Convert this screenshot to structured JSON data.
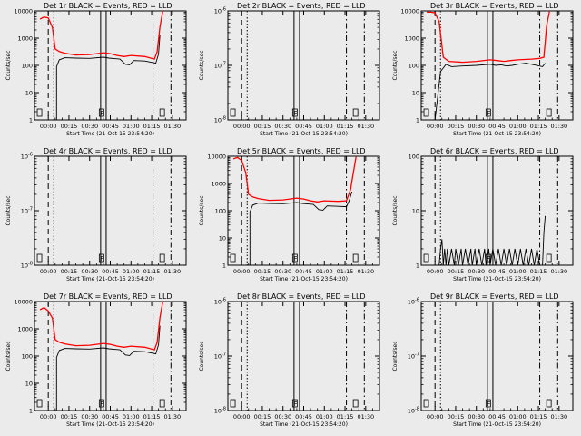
{
  "colors": {
    "events": "#000000",
    "lld": "#ff0000",
    "background": "#ebebeb"
  },
  "chart_data": [
    {
      "type": "line",
      "title": "Det 1r BLACK = Events, RED = LLD",
      "scale": "log",
      "ylim": [
        1,
        10000
      ],
      "yticks": [
        "1",
        "10",
        "100",
        "1000",
        "10000"
      ],
      "xlabel": "Start Time (21-Oct-15 23:54:20)",
      "ylabel": "Counts/sec",
      "xtick_labels": [
        "00:00",
        "00:15",
        "00:30",
        "00:45",
        "01:00",
        "01:15",
        "01:30"
      ],
      "flags": [
        "",
        "F",
        ""
      ],
      "series": [
        {
          "name": "Events",
          "x": [
            0,
            6,
            6,
            8,
            12,
            20,
            30,
            40,
            44,
            49,
            52,
            56,
            59,
            62,
            70,
            78,
            80,
            81
          ],
          "values": [
            0,
            0,
            90,
            160,
            190,
            185,
            180,
            200,
            185,
            175,
            170,
            110,
            105,
            150,
            145,
            120,
            260,
            1300
          ]
        },
        {
          "name": "LLD",
          "x": [
            -6,
            -3,
            0,
            3,
            5,
            8,
            12,
            20,
            30,
            40,
            45,
            50,
            55,
            60,
            70,
            77,
            79,
            81,
            83
          ],
          "values": [
            5000,
            6000,
            5500,
            2500,
            400,
            320,
            280,
            240,
            250,
            290,
            270,
            230,
            210,
            230,
            210,
            170,
            320,
            2600,
            9500
          ]
        }
      ]
    },
    {
      "type": "line",
      "title": "Det 2r BLACK = Events, RED = LLD",
      "scale": "log",
      "ylim": [
        1e-08,
        1e-06
      ],
      "yticks": [
        "10^-8",
        "10^-7",
        "10^-6"
      ],
      "xlabel": "Start Time (21-Oct-15 23:54:20)",
      "ylabel": "Counts/sec",
      "xtick_labels": [
        "00:00",
        "00:15",
        "00:30",
        "00:45",
        "01:00",
        "01:15",
        "01:30"
      ],
      "flags": [
        "",
        "F",
        ""
      ],
      "series": []
    },
    {
      "type": "line",
      "title": "Det 3r BLACK = Events, RED = LLD",
      "scale": "log",
      "ylim": [
        1,
        10000
      ],
      "yticks": [
        "1",
        "10",
        "100",
        "1000",
        "10000"
      ],
      "xlabel": "Start Time (21-Oct-15 23:54:20)",
      "ylabel": "Counts/sec",
      "xtick_labels": [
        "00:00",
        "00:15",
        "00:30",
        "00:45",
        "01:00",
        "01:15",
        "01:30"
      ],
      "flags": [
        "",
        "F",
        ""
      ],
      "series": [
        {
          "name": "Events",
          "x": [
            0,
            4,
            6,
            8,
            12,
            20,
            30,
            40,
            44,
            48,
            52,
            56,
            60,
            66,
            72,
            78,
            80
          ],
          "values": [
            0,
            60,
            80,
            110,
            90,
            95,
            100,
            110,
            100,
            105,
            95,
            100,
            110,
            120,
            105,
            90,
            120
          ]
        },
        {
          "name": "LLD",
          "x": [
            -6,
            -3,
            0,
            3,
            6,
            10,
            20,
            30,
            40,
            45,
            50,
            55,
            60,
            70,
            76,
            79,
            81,
            83
          ],
          "values": [
            9000,
            9000,
            8500,
            4000,
            200,
            140,
            130,
            140,
            160,
            150,
            140,
            150,
            160,
            170,
            180,
            200,
            3000,
            9500
          ]
        }
      ]
    },
    {
      "type": "line",
      "title": "Det 4r BLACK = Events, RED = LLD",
      "scale": "log",
      "ylim": [
        1e-08,
        1e-06
      ],
      "yticks": [
        "10^-8",
        "10^-7",
        "10^-6"
      ],
      "xlabel": "Start Time (21-Oct-15 23:54:20)",
      "ylabel": "Counts/sec",
      "xtick_labels": [
        "00:00",
        "00:15",
        "00:30",
        "00:45",
        "01:00",
        "01:15",
        "01:30"
      ],
      "flags": [
        "",
        "F",
        ""
      ],
      "series": []
    },
    {
      "type": "line",
      "title": "Det 5r BLACK = Events, RED = LLD",
      "scale": "log",
      "ylim": [
        1,
        10000
      ],
      "yticks": [
        "1",
        "10",
        "100",
        "1000",
        "10000"
      ],
      "xlabel": "Start Time (21-Oct-15 23:54:20)",
      "ylabel": "Counts/sec",
      "xtick_labels": [
        "00:00",
        "00:15",
        "00:30",
        "00:45",
        "01:00",
        "01:15",
        "01:30"
      ],
      "flags": [
        "",
        "F",
        ""
      ],
      "series": [
        {
          "name": "Events",
          "x": [
            0,
            6,
            6,
            8,
            12,
            20,
            30,
            40,
            44,
            49,
            52,
            56,
            59,
            62,
            70,
            76,
            78,
            80
          ],
          "values": [
            0,
            0,
            90,
            160,
            190,
            185,
            180,
            200,
            185,
            175,
            170,
            110,
            105,
            150,
            145,
            140,
            230,
            500
          ]
        },
        {
          "name": "LLD",
          "x": [
            -6,
            -3,
            0,
            3,
            5,
            8,
            12,
            20,
            30,
            40,
            45,
            50,
            55,
            60,
            70,
            76,
            79,
            81,
            83
          ],
          "values": [
            8000,
            9000,
            7000,
            2500,
            400,
            320,
            280,
            240,
            250,
            290,
            270,
            230,
            210,
            230,
            220,
            230,
            600,
            2500,
            9500
          ]
        }
      ]
    },
    {
      "type": "line",
      "title": "Det 6r BLACK = Events, RED = LLD",
      "scale": "log",
      "ylim": [
        1,
        100
      ],
      "yticks": [
        "1",
        "10",
        "100"
      ],
      "xlabel": "Start Time (21-Oct-15 23:54:20)",
      "ylabel": "Counts/sec",
      "xtick_labels": [
        "00:00",
        "00:15",
        "00:30",
        "00:45",
        "01:00",
        "01:15",
        "01:30"
      ],
      "flags": [
        "",
        "F",
        ""
      ],
      "series": [
        {
          "name": "Events",
          "x": [
            3,
            4,
            5,
            6,
            7,
            8,
            9,
            10,
            12,
            14,
            15,
            17,
            19,
            20,
            22,
            24,
            26,
            27,
            29,
            30,
            32,
            34,
            36,
            37,
            39,
            40,
            42,
            44,
            46,
            48,
            50,
            52,
            54,
            56,
            58,
            60,
            62,
            64,
            66,
            68,
            70,
            72,
            74,
            76,
            78,
            79,
            80
          ],
          "values": [
            1,
            2,
            3,
            1,
            2,
            1,
            2,
            1,
            2,
            1,
            2,
            1,
            2,
            1,
            2,
            1,
            2,
            1,
            2,
            1,
            2,
            1,
            2,
            1,
            2,
            1,
            2,
            1,
            2,
            1,
            2,
            1,
            2,
            1,
            2,
            1,
            2,
            1,
            2,
            1,
            2,
            1,
            2,
            1,
            1,
            4,
            8
          ]
        }
      ]
    },
    {
      "type": "line",
      "title": "Det 7r BLACK = Events, RED = LLD",
      "scale": "log",
      "ylim": [
        1,
        10000
      ],
      "yticks": [
        "1",
        "10",
        "100",
        "1000",
        "10000"
      ],
      "xlabel": "Start Time (21-Oct-15 23:54:20)",
      "ylabel": "Counts/sec",
      "xtick_labels": [
        "00:00",
        "00:15",
        "00:30",
        "00:45",
        "01:00",
        "01:15",
        "01:30"
      ],
      "flags": [
        "",
        "F",
        ""
      ],
      "series": [
        {
          "name": "Events",
          "x": [
            0,
            6,
            6,
            8,
            12,
            20,
            30,
            40,
            44,
            49,
            52,
            56,
            59,
            62,
            70,
            78,
            80,
            81
          ],
          "values": [
            0,
            0,
            90,
            160,
            190,
            185,
            180,
            200,
            185,
            175,
            170,
            110,
            105,
            150,
            145,
            120,
            260,
            1300
          ]
        },
        {
          "name": "LLD",
          "x": [
            -6,
            -3,
            0,
            3,
            5,
            8,
            12,
            20,
            30,
            40,
            45,
            50,
            55,
            60,
            70,
            77,
            79,
            81,
            83
          ],
          "values": [
            5000,
            6000,
            4500,
            2500,
            400,
            320,
            280,
            240,
            250,
            290,
            270,
            230,
            210,
            230,
            210,
            170,
            320,
            2600,
            9500
          ]
        }
      ]
    },
    {
      "type": "line",
      "title": "Det 8r BLACK = Events, RED = LLD",
      "scale": "log",
      "ylim": [
        1e-08,
        1e-06
      ],
      "yticks": [
        "10^-8",
        "10^-7",
        "10^-6"
      ],
      "xlabel": "Start Time (21-Oct-15 23:54:20)",
      "ylabel": "Counts/sec",
      "xtick_labels": [
        "00:00",
        "00:15",
        "00:30",
        "00:45",
        "01:00",
        "01:15",
        "01:30"
      ],
      "flags": [
        "",
        "F",
        ""
      ],
      "series": []
    },
    {
      "type": "line",
      "title": "Det 9r BLACK = Events, RED = LLD",
      "scale": "log",
      "ylim": [
        1e-08,
        1e-06
      ],
      "yticks": [
        "10^-8",
        "10^-7",
        "10^-6"
      ],
      "xlabel": "Start Time (21-Oct-15 23:54:20)",
      "ylabel": "Counts/sec",
      "xtick_labels": [
        "00:00",
        "00:15",
        "00:30",
        "00:45",
        "01:00",
        "01:15",
        "01:30"
      ],
      "flags": [
        "",
        "F",
        ""
      ],
      "series": []
    }
  ]
}
